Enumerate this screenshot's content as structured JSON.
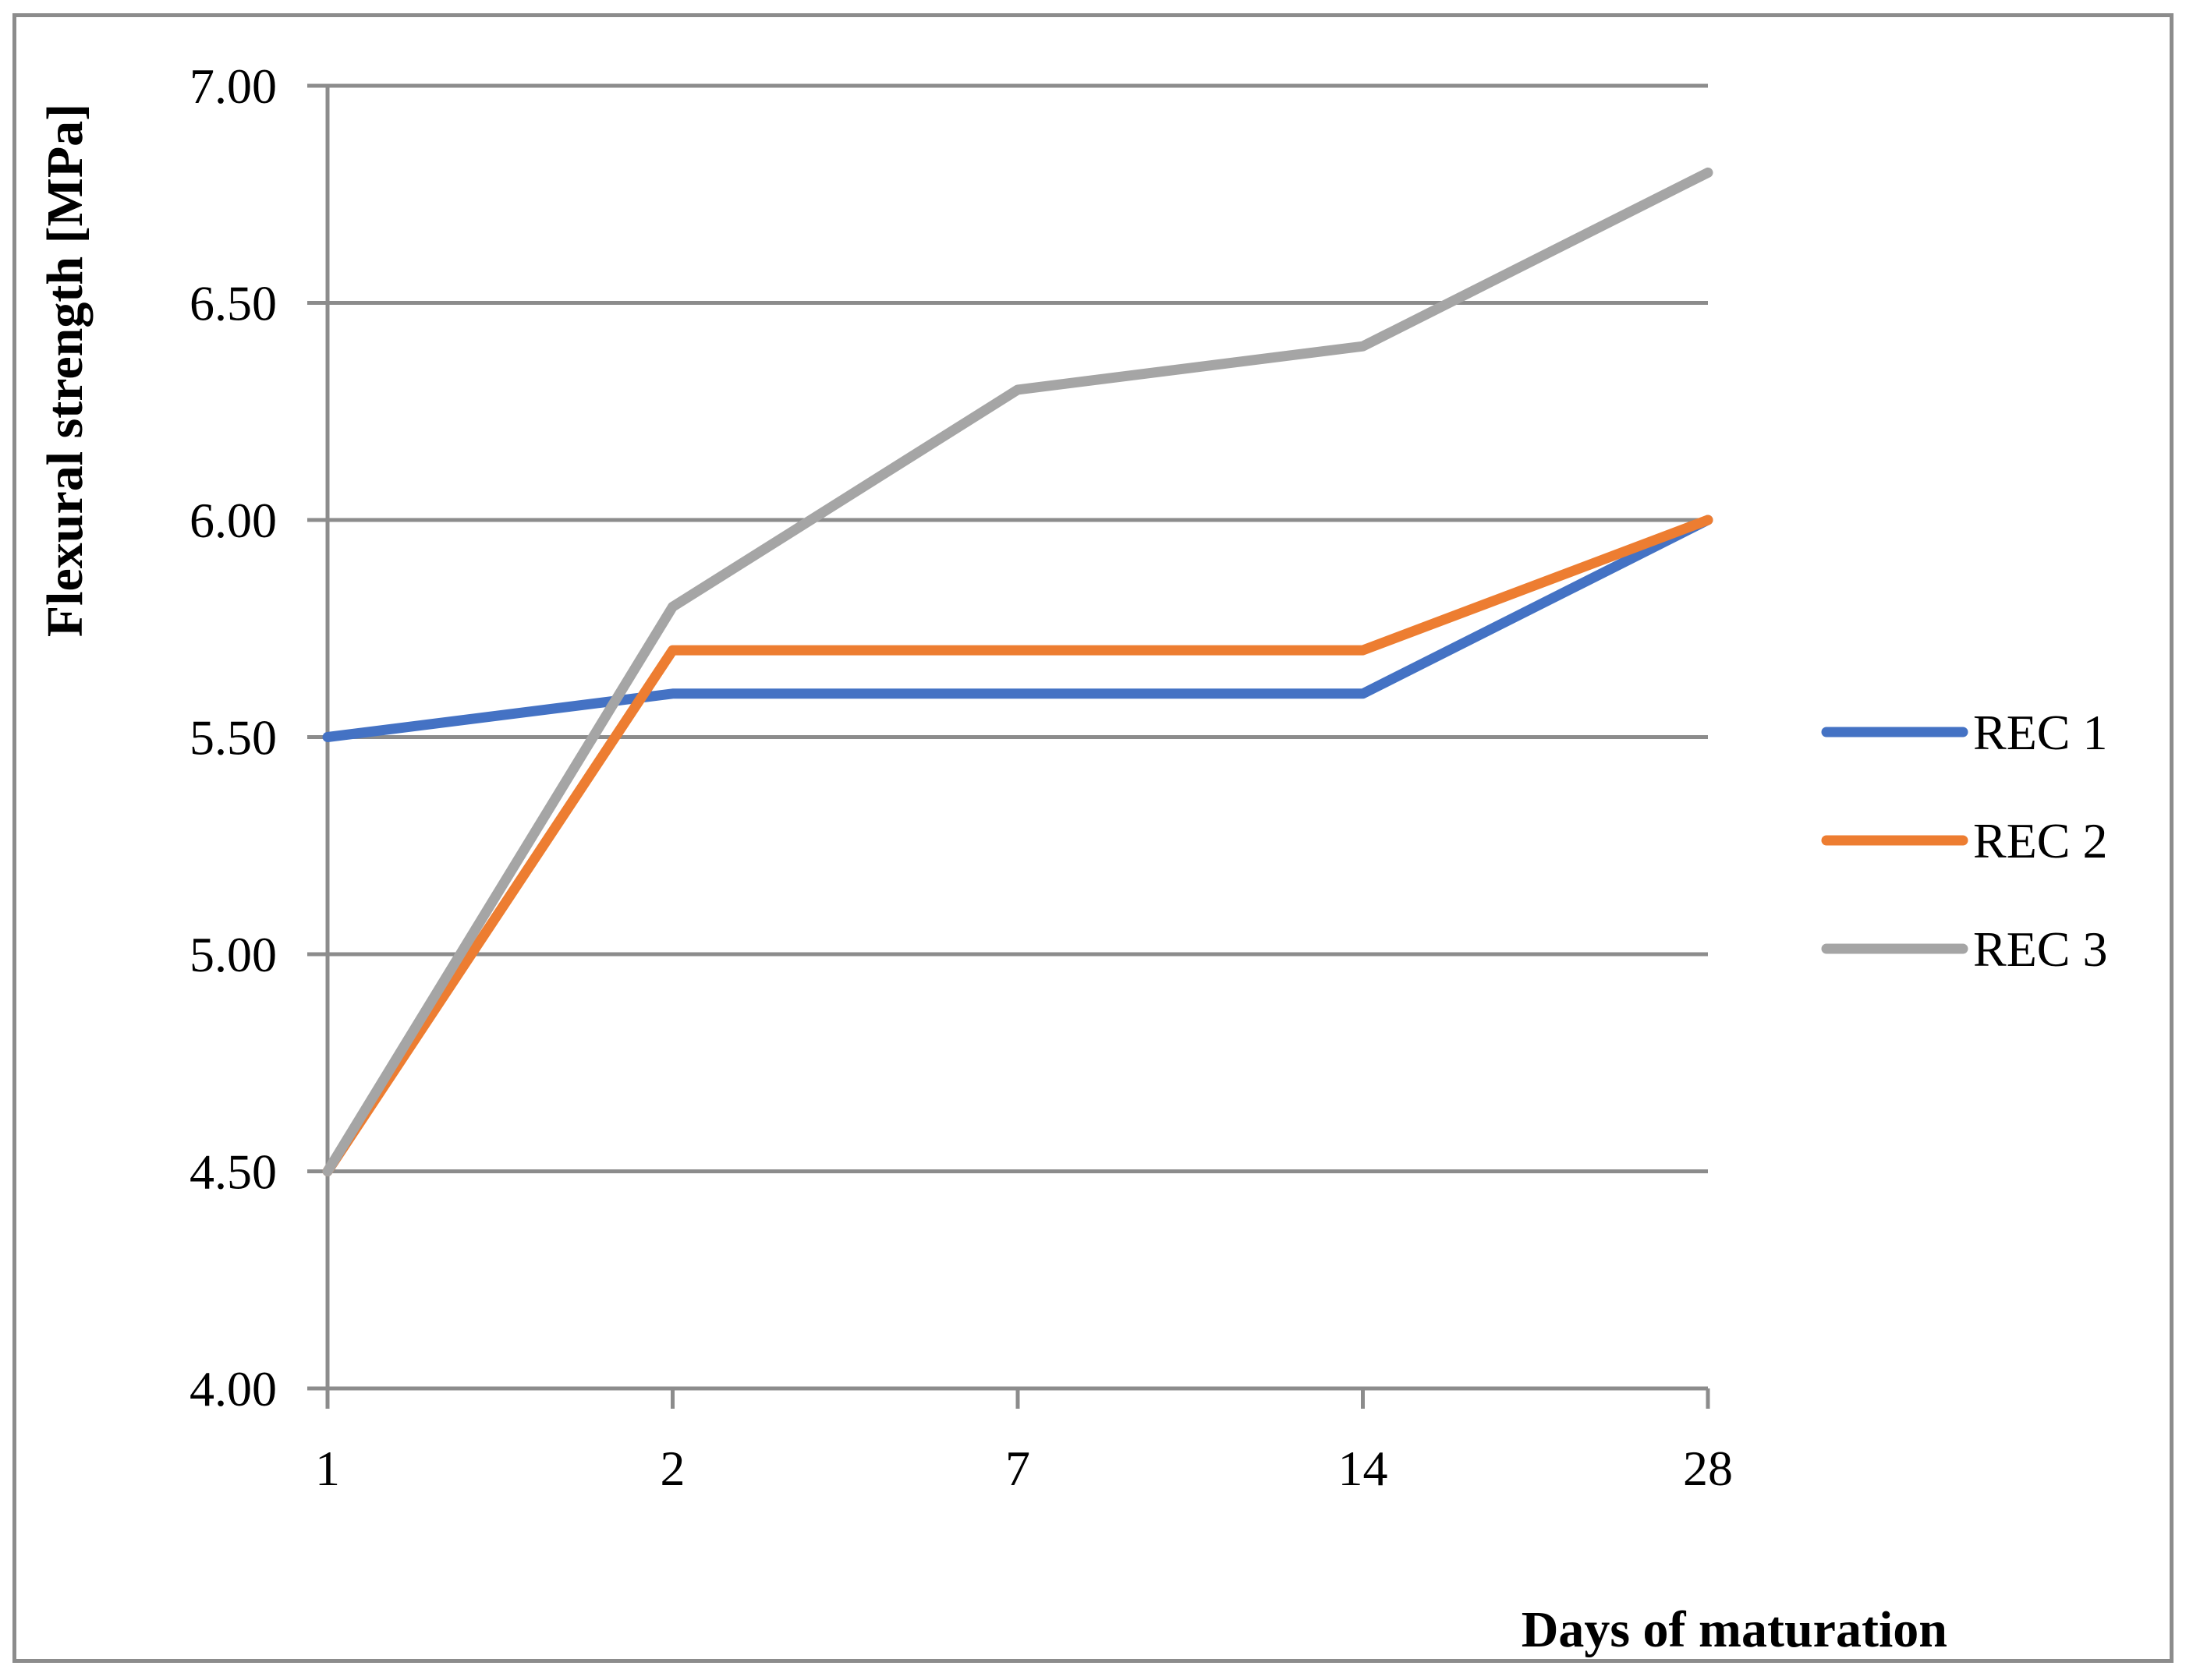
{
  "chart_data": {
    "type": "line",
    "title": "",
    "xlabel": "Days of maturation",
    "ylabel": "Flexural strength [MPa]",
    "categories": [
      "1",
      "2",
      "7",
      "14",
      "28"
    ],
    "series": [
      {
        "name": "REC 1",
        "color": "#4472C4",
        "values": [
          5.5,
          5.6,
          5.6,
          5.6,
          6.0
        ]
      },
      {
        "name": "REC 2",
        "color": "#ED7D31",
        "values": [
          4.5,
          5.7,
          5.7,
          5.7,
          6.0
        ]
      },
      {
        "name": "REC 3",
        "color": "#A5A5A5",
        "values": [
          4.5,
          5.8,
          6.3,
          6.4,
          6.8
        ]
      }
    ],
    "ylim": [
      4.0,
      7.0
    ],
    "ytick_step": 0.5,
    "ytick_labels": [
      "4.00",
      "4.50",
      "5.00",
      "5.50",
      "6.00",
      "6.50",
      "7.00"
    ],
    "grid": "horizontal",
    "legend_position": "right",
    "legend_entries": [
      "REC 1",
      "REC 2",
      "REC 3"
    ],
    "axis_color": "#8C8C8C",
    "grid_color": "#8C8C8C",
    "text_color": "#000000",
    "border_color": "#8C8C8C"
  }
}
